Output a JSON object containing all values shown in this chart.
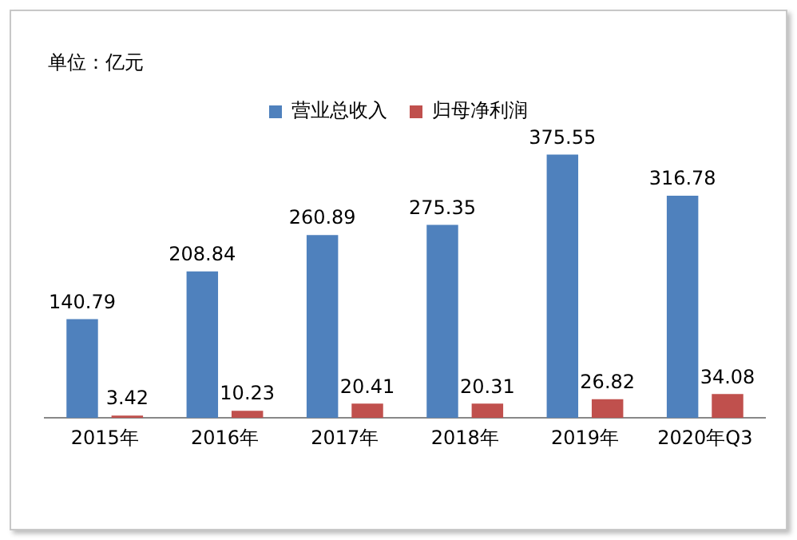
{
  "chart_data": {
    "type": "bar",
    "categories": [
      "2015年",
      "2016年",
      "2017年",
      "2018年",
      "2019年",
      "2020年Q3"
    ],
    "series": [
      {
        "name": "营业总收入",
        "color": "#4f81bd",
        "values": [
          140.79,
          208.84,
          260.89,
          275.35,
          375.55,
          316.78
        ]
      },
      {
        "name": "归母净利润",
        "color": "#c0504d",
        "values": [
          3.42,
          10.23,
          20.41,
          20.31,
          26.82,
          34.08
        ]
      }
    ],
    "annotations": [
      "单位：亿元"
    ],
    "data_labels": true,
    "legend": "top",
    "grid": false
  }
}
